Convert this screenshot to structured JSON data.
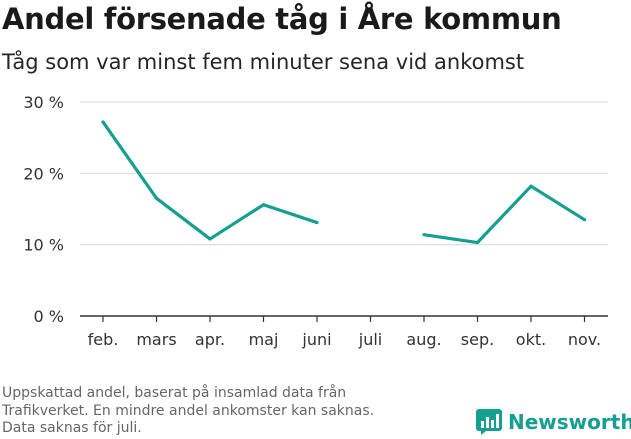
{
  "header": {
    "title": "Andel försenade tåg i Åre kommun",
    "subtitle": "Tåg som var minst fem minuter sena vid ankomst"
  },
  "footnote": {
    "lines": [
      "Uppskattad andel, baserat på insamlad data från",
      "Trafikverket. En mindre andel ankomster kan saknas.",
      "Data saknas för juli."
    ]
  },
  "brand": {
    "name": "Newsworthy",
    "icon": "newsworthy-logo-icon",
    "color": "#149f91"
  },
  "chart_data": {
    "type": "line",
    "title": "Andel försenade tåg i Åre kommun",
    "subtitle": "Tåg som var minst fem minuter sena vid ankomst",
    "categories": [
      "feb.",
      "mars",
      "apr.",
      "maj",
      "juni",
      "juli",
      "aug.",
      "sep.",
      "okt.",
      "nov."
    ],
    "series": [
      {
        "values": [
          27.2,
          16.5,
          10.8,
          15.6,
          13.1,
          null,
          11.4,
          10.3,
          18.2,
          13.5
        ],
        "color": "#149f91"
      }
    ],
    "ylim": [
      0,
      30
    ],
    "yticks": [
      0,
      10,
      20,
      30
    ],
    "ytick_labels": [
      "0 %",
      "10 %",
      "20 %",
      "30 %"
    ],
    "grid": true,
    "legend": "none",
    "colors": {
      "line": "#149f91",
      "grid": "#dddddd",
      "axis": "#333333"
    }
  }
}
